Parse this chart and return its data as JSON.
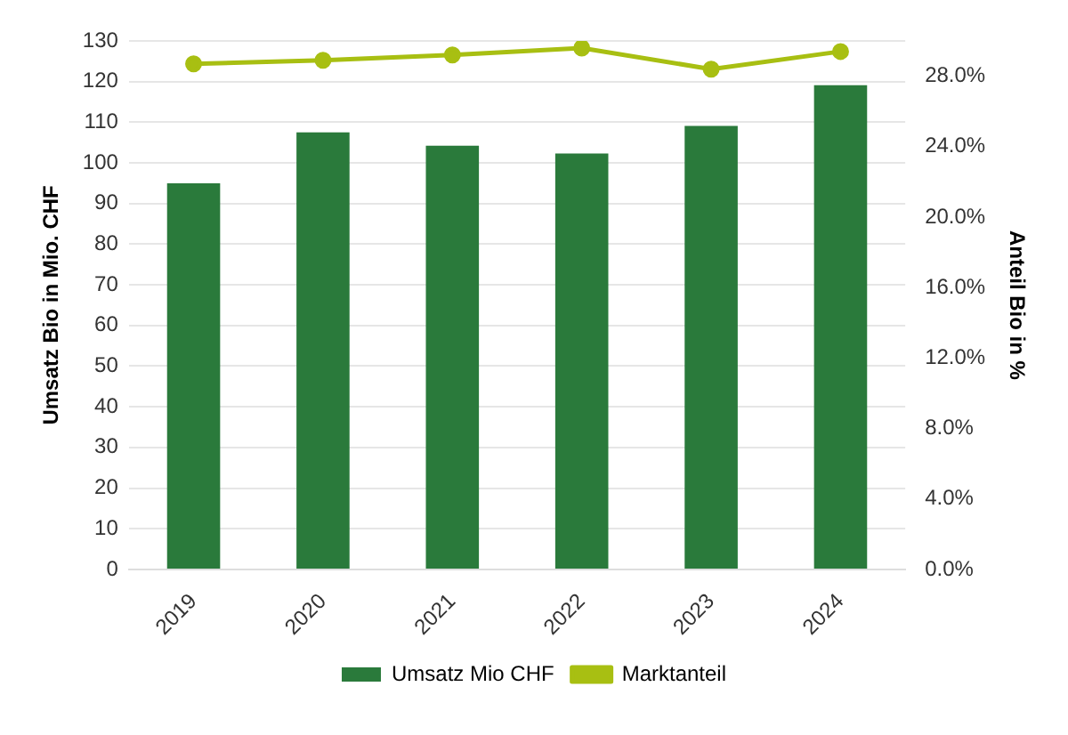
{
  "chart_data": {
    "type": "bar",
    "categories": [
      "2019",
      "2020",
      "2021",
      "2022",
      "2023",
      "2024"
    ],
    "series": [
      {
        "name": "Umsatz Mio CHF",
        "color": "#2a7a3b",
        "values": [
          95,
          107.5,
          104.2,
          102.3,
          109.1,
          119.1
        ]
      },
      {
        "name": "Marktanteil",
        "type": "line",
        "axis": "y2",
        "color": "#a8bf12",
        "marker": "circle",
        "values": [
          28.7,
          28.9,
          29.2,
          29.6,
          28.4,
          29.4
        ]
      }
    ],
    "ylabel": "Umsatz Bio in Mio. CHF",
    "y2label": "Anteil Bio in %",
    "ylim": [
      0,
      130
    ],
    "yticks": [
      0,
      10,
      20,
      30,
      40,
      50,
      60,
      70,
      80,
      90,
      100,
      110,
      120,
      130
    ],
    "y2lim": [
      0,
      30
    ],
    "y2ticks": [
      {
        "value": 0,
        "label": "0.0%"
      },
      {
        "value": 4,
        "label": "4.0%"
      },
      {
        "value": 8,
        "label": "8.0%"
      },
      {
        "value": 12,
        "label": "12.0%"
      },
      {
        "value": 16,
        "label": "16.0%"
      },
      {
        "value": 20,
        "label": "20.0%"
      },
      {
        "value": 24,
        "label": "24.0%"
      },
      {
        "value": 28,
        "label": "28.0%"
      }
    ],
    "grid": "y",
    "legend": "bottom"
  }
}
